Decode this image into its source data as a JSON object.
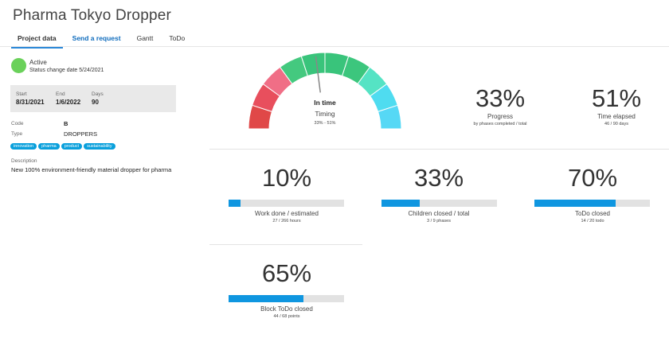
{
  "title": "Pharma Tokyo Dropper",
  "tabs": [
    "Project data",
    "Send a request",
    "Gantt",
    "ToDo"
  ],
  "status": {
    "label": "Active",
    "date_text": "Status change date 5/24/2021",
    "color": "#6ad15a"
  },
  "dates": {
    "start_label": "Start",
    "start": "8/31/2021",
    "end_label": "End",
    "end": "1/6/2022",
    "days_label": "Days",
    "days": "90"
  },
  "fields": {
    "code_label": "Code",
    "code": "B",
    "type_label": "Type",
    "type": "DROPPERS"
  },
  "tags": [
    "innovation",
    "pharma",
    "product",
    "sustainability"
  ],
  "description": {
    "label": "Description",
    "text": "New 100% environment-friendly material dropper for pharma"
  },
  "gauge": {
    "status": "In time",
    "label": "Timing",
    "sub": "33% - 51%",
    "needle_value": 0.46
  },
  "progress": {
    "value": "33%",
    "label": "Progress",
    "sub": "by phases completed / total"
  },
  "time_elapsed": {
    "value": "51%",
    "label": "Time elapsed",
    "sub": "46 / 90 days"
  },
  "work_done": {
    "value": "10%",
    "label": "Work done / estimated",
    "sub": "27 / 266 hours",
    "fill": 0.1
  },
  "children": {
    "value": "33%",
    "label": "Children closed / total",
    "sub": "3 / 9 phases",
    "fill": 0.33
  },
  "todo": {
    "value": "70%",
    "label": "ToDo closed",
    "sub": "14 / 20 todo",
    "fill": 0.7
  },
  "block_todo": {
    "value": "65%",
    "label": "Block ToDo closed",
    "sub": "44 / 68 points",
    "fill": 0.65
  },
  "colors": {
    "accent": "#0f96e0",
    "tag": "#0aa0dc"
  }
}
